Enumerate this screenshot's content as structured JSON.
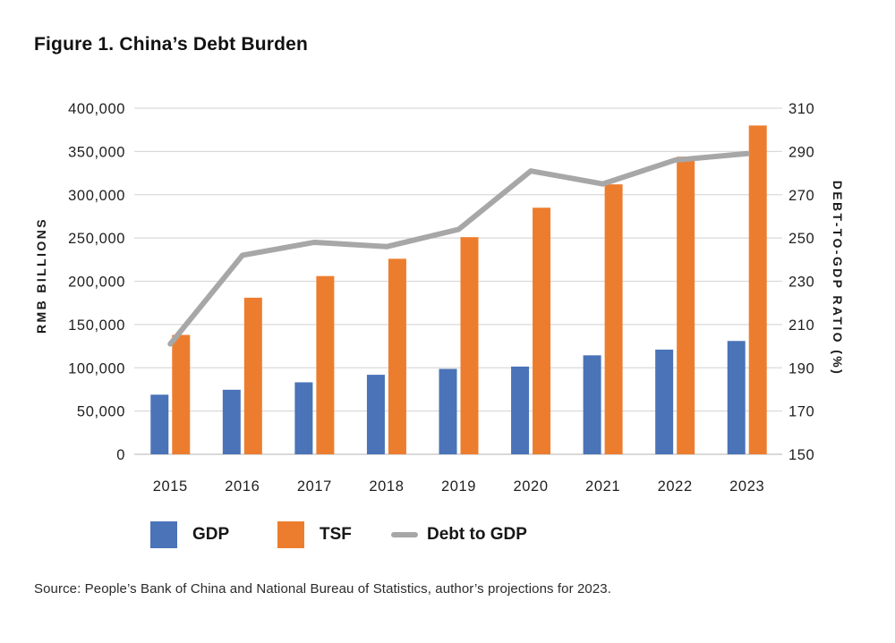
{
  "figure": {
    "title": "Figure 1. China’s Debt Burden",
    "source": "Source: People’s Bank of China and National Bureau of Statistics, author’s projections for 2023."
  },
  "chart_data": {
    "type": "combo-bar-line",
    "categories": [
      "2015",
      "2016",
      "2017",
      "2018",
      "2019",
      "2020",
      "2021",
      "2022",
      "2023"
    ],
    "series": [
      {
        "name": "GDP",
        "type": "bar",
        "axis": "left",
        "color": "#4A73B8",
        "values": [
          68900,
          74600,
          83200,
          91900,
          98700,
          101400,
          114400,
          121000,
          131000
        ]
      },
      {
        "name": "TSF",
        "type": "bar",
        "axis": "left",
        "color": "#ED7D2E",
        "values": [
          138000,
          181000,
          206000,
          226000,
          251000,
          285000,
          312000,
          344000,
          380000
        ]
      },
      {
        "name": "Debt to GDP",
        "type": "line",
        "axis": "right",
        "color": "#A7A7A7",
        "values": [
          201,
          242,
          248,
          246,
          254,
          281,
          275,
          286,
          289
        ]
      }
    ],
    "left_axis": {
      "label": "RMB BILLIONS",
      "min": 0,
      "max": 400000,
      "ticks": [
        0,
        50000,
        100000,
        150000,
        200000,
        250000,
        300000,
        350000,
        400000
      ]
    },
    "right_axis": {
      "label": "DEBT-TO-GDP RATIO (%)",
      "min": 150,
      "max": 310,
      "ticks": [
        150,
        170,
        190,
        210,
        230,
        250,
        270,
        290,
        310
      ]
    },
    "grid": true,
    "gridline_color": "#DADADA",
    "baseline_color": "#C2C2C2",
    "legend_position": "bottom"
  }
}
